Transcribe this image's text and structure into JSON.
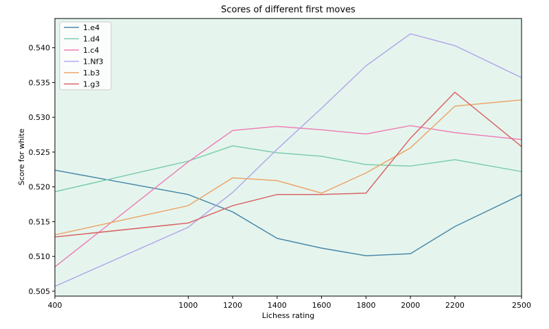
{
  "chart_data": {
    "type": "line",
    "title": "Scores of different first moves",
    "xlabel": "Lichess rating",
    "ylabel": "Score for white",
    "x": [
      400,
      1000,
      1200,
      1400,
      1600,
      1800,
      2000,
      2200,
      2500
    ],
    "x_ticks": [
      "400",
      "1000",
      "1200",
      "1400",
      "1600",
      "1800",
      "2000",
      "2200",
      "2500"
    ],
    "y_ticks": [
      0.505,
      0.51,
      0.515,
      0.52,
      0.525,
      0.53,
      0.535,
      0.54
    ],
    "y_tick_labels": [
      "0.505",
      "0.510",
      "0.515",
      "0.520",
      "0.525",
      "0.530",
      "0.535",
      "0.540"
    ],
    "ylim": [
      0.5043,
      0.5442
    ],
    "legend_position": "top-left",
    "grid": false,
    "background_color": "#e5f5ee",
    "series": [
      {
        "name": "1.e4",
        "color": "#4a88a8",
        "values": [
          0.5224,
          0.5189,
          0.5164,
          0.5126,
          0.5112,
          0.5101,
          0.5104,
          0.5143,
          0.5189
        ]
      },
      {
        "name": "1.d4",
        "color": "#7ccdad",
        "values": [
          0.5193,
          0.5237,
          0.5259,
          0.5249,
          0.5244,
          0.5232,
          0.523,
          0.5239,
          0.5222
        ]
      },
      {
        "name": "1.c4",
        "color": "#ef7fb5",
        "values": [
          0.5085,
          0.5236,
          0.5281,
          0.5287,
          0.5282,
          0.5276,
          0.5288,
          0.5278,
          0.5268
        ]
      },
      {
        "name": "1.Nf3",
        "color": "#b4a7ea",
        "values": [
          0.5057,
          0.5142,
          0.5192,
          0.5254,
          0.5313,
          0.5374,
          0.542,
          0.5403,
          0.5357
        ]
      },
      {
        "name": "1.b3",
        "color": "#eda468",
        "values": [
          0.5131,
          0.5173,
          0.5213,
          0.5209,
          0.5191,
          0.522,
          0.5256,
          0.5316,
          0.5325
        ]
      },
      {
        "name": "1.g3",
        "color": "#d96464",
        "values": [
          0.5128,
          0.5148,
          0.5173,
          0.5189,
          0.5189,
          0.5191,
          0.527,
          0.5336,
          0.5258
        ]
      }
    ]
  }
}
